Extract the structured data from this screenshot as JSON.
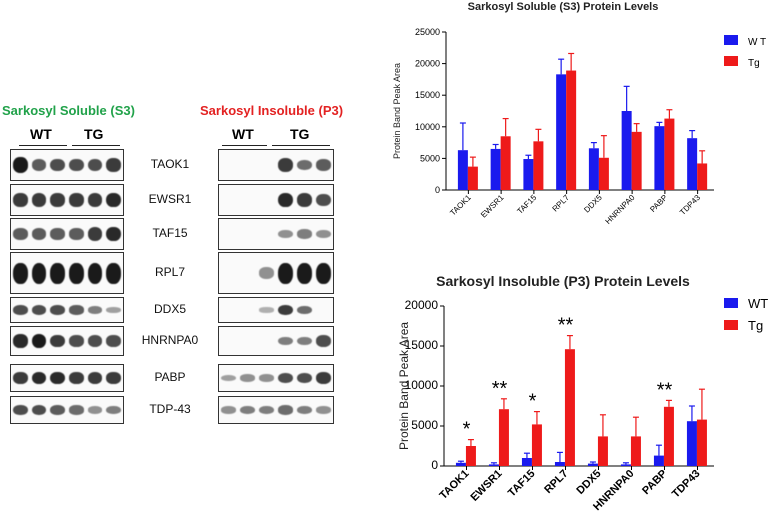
{
  "blot_panel": {
    "soluble_title": "Sarkosyl Soluble (S3)",
    "insoluble_title": "Sarkosyl Insoluble (P3)",
    "soluble_color": "#21a24a",
    "insoluble_color": "#e32222",
    "soluble_groups": [
      "WT",
      "TG"
    ],
    "insoluble_groups": [
      "WT",
      "TG"
    ],
    "proteins": [
      "TAOK1",
      "EWSR1",
      "TAF15",
      "RPL7",
      "DDX5",
      "HNRNPA0",
      "PABP",
      "TDP-43"
    ]
  },
  "chart_data": [
    {
      "type": "bar",
      "title": "Sarkosyl Soluble (S3) Protein Levels",
      "xlabel": "",
      "ylabel": "Protein Band Peak Area",
      "ylim": [
        0,
        25000
      ],
      "yticks": [
        0,
        5000,
        10000,
        15000,
        20000,
        25000
      ],
      "categories": [
        "TAOK1",
        "EWSR1",
        "TAF15",
        "RPL7",
        "DDX5",
        "HNRNPA0",
        "PABP",
        "TDP43"
      ],
      "legend_position": "top-right",
      "series": [
        {
          "name": "W T",
          "color": "#1a1aee",
          "values": [
            6300,
            6500,
            4900,
            18300,
            6600,
            12500,
            10100,
            8200
          ],
          "errors": [
            4300,
            700,
            600,
            2400,
            900,
            3900,
            600,
            1200
          ]
        },
        {
          "name": "Tg",
          "color": "#ee1a1a",
          "values": [
            3700,
            8500,
            7700,
            18900,
            5100,
            9200,
            11300,
            4200
          ],
          "errors": [
            1500,
            2800,
            1900,
            2700,
            3500,
            1300,
            1400,
            2000
          ]
        }
      ],
      "significance": [
        "",
        "",
        "",
        "",
        "",
        "",
        "",
        ""
      ]
    },
    {
      "type": "bar",
      "title": "Sarkosyl Insoluble (P3) Protein Levels",
      "xlabel": "",
      "ylabel": "Protein Band Peak Area",
      "ylim": [
        0,
        20000
      ],
      "yticks": [
        0,
        5000,
        10000,
        15000,
        20000
      ],
      "categories": [
        "TAOK1",
        "EWSR1",
        "TAF15",
        "RPL7",
        "DDX5",
        "HNRNPA0",
        "PABP",
        "TDP43"
      ],
      "legend_position": "top-right",
      "series": [
        {
          "name": "WT",
          "color": "#1a1aee",
          "values": [
            400,
            200,
            1000,
            500,
            300,
            200,
            1300,
            5600
          ],
          "errors": [
            200,
            200,
            600,
            1200,
            200,
            200,
            1300,
            1900
          ]
        },
        {
          "name": "Tg",
          "color": "#ee1a1a",
          "values": [
            2500,
            7100,
            5200,
            14600,
            3700,
            3700,
            7400,
            5800
          ],
          "errors": [
            800,
            1300,
            1600,
            1700,
            2700,
            2400,
            800,
            3800
          ]
        }
      ],
      "significance": [
        "*",
        "**",
        "*",
        "**",
        "",
        "",
        "**",
        ""
      ]
    }
  ]
}
